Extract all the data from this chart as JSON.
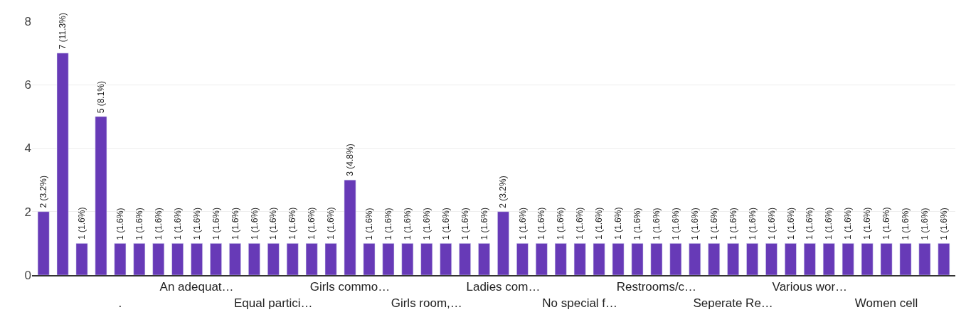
{
  "chart_data": {
    "type": "bar",
    "categories": [
      null,
      null,
      null,
      null,
      ".",
      null,
      null,
      null,
      "An adequat…",
      null,
      null,
      null,
      "Equal partici…",
      null,
      null,
      null,
      "Girls commo…",
      null,
      null,
      null,
      "Girls room,…",
      null,
      null,
      null,
      "Ladies com…",
      null,
      null,
      null,
      "No special f…",
      null,
      null,
      null,
      "Restrooms/c…",
      null,
      null,
      null,
      "Seperate Re…",
      null,
      null,
      null,
      "Various wor…",
      null,
      null,
      null,
      "Women cell",
      null,
      null,
      null
    ],
    "values": [
      2,
      7,
      1,
      5,
      1,
      1,
      1,
      1,
      1,
      1,
      1,
      1,
      1,
      1,
      1,
      1,
      3,
      1,
      1,
      1,
      1,
      1,
      1,
      1,
      2,
      1,
      1,
      1,
      1,
      1,
      1,
      1,
      1,
      1,
      1,
      1,
      1,
      1,
      1,
      1,
      1,
      1,
      1,
      1,
      1,
      1,
      1,
      1
    ],
    "value_labels": [
      "2 (3.2%)",
      "7 (11.3%)",
      "1 (1.6%)",
      "5 (8.1%)",
      "1 (1.6%)",
      "1 (1.6%)",
      "1 (1.6%)",
      "1 (1.6%)",
      "1 (1.6%)",
      "1 (1.6%)",
      "1 (1.6%)",
      "1 (1.6%)",
      "1 (1.6%)",
      "1 (1.6%)",
      "1 (1.6%)",
      "1 (1.6%)",
      "3 (4.8%)",
      "1 (1.6%)",
      "1 (1.6%)",
      "1 (1.6%)",
      "1 (1.6%)",
      "1 (1.6%)",
      "1 (1.6%)",
      "1 (1.6%)",
      "2 (3.2%)",
      "1 (1.6%)",
      "1 (1.6%)",
      "1 (1.6%)",
      "1 (1.6%)",
      "1 (1.6%)",
      "1 (1.6%)",
      "1 (1.6%)",
      "1 (1.6%)",
      "1 (1.6%)",
      "1 (1.6%)",
      "1 (1.6%)",
      "1 (1.6%)",
      "1 (1.6%)",
      "1 (1.6%)",
      "1 (1.6%)",
      "1 (1.6%)",
      "1 (1.6%)",
      "1 (1.6%)",
      "1 (1.6%)",
      "1 (1.6%)",
      "1 (1.6%)",
      "1 (1.6%)",
      "1 (1.6%)"
    ],
    "color": "#673ab7",
    "ylim": [
      0,
      8
    ],
    "yticks": [
      0,
      2,
      4,
      6,
      8
    ],
    "grid": "y"
  }
}
